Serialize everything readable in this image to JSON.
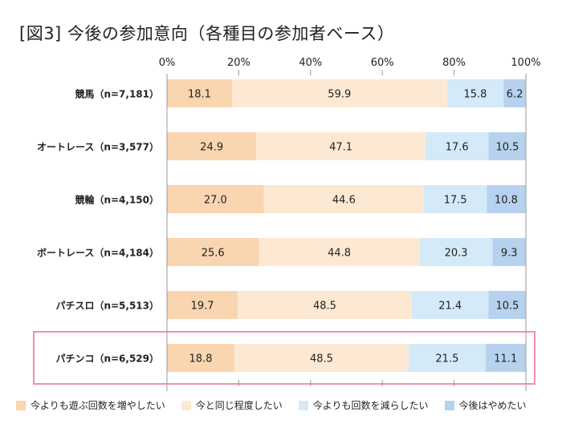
{
  "chart_data": {
    "type": "bar",
    "orientation": "horizontal",
    "stacked": true,
    "title": "[図3] 今後の参加意向（各種目の参加者ベース）",
    "xlabel": "",
    "ylabel": "",
    "xlim": [
      0,
      100
    ],
    "x_ticks": [
      "0%",
      "20%",
      "40%",
      "60%",
      "80%",
      "100%"
    ],
    "x_tick_values": [
      0,
      20,
      40,
      60,
      80,
      100
    ],
    "categories": [
      "競馬（n=7,181）",
      "オートレース（n=3,577）",
      "競輪（n=4,150）",
      "ボートレース（n=4,184）",
      "パチスロ（n=5,513）",
      "パチンコ（n=6,529）"
    ],
    "series": [
      {
        "name": "今よりも遊ぶ回数を増やしたい",
        "color": "#f9d5b0",
        "values": [
          18.1,
          24.9,
          27.0,
          25.6,
          19.7,
          18.8
        ],
        "labels": [
          "18.1",
          "24.9",
          "27.0",
          "25.6",
          "19.7",
          "18.8"
        ]
      },
      {
        "name": "今と同じ程度したい",
        "color": "#fde9d3",
        "values": [
          59.9,
          47.1,
          44.6,
          44.8,
          48.5,
          48.5
        ],
        "labels": [
          "59.9",
          "47.1",
          "44.6",
          "44.8",
          "48.5",
          "48.5"
        ]
      },
      {
        "name": "今よりも回数を減らしたい",
        "color": "#d5eaf8",
        "values": [
          15.8,
          17.6,
          17.5,
          20.3,
          21.4,
          21.5
        ],
        "labels": [
          "15.8",
          "17.6",
          "17.5",
          "20.3",
          "21.4",
          "21.5"
        ]
      },
      {
        "name": "今後はやめたい",
        "color": "#b7d2ee",
        "values": [
          6.2,
          10.5,
          10.8,
          9.3,
          10.5,
          11.1
        ],
        "labels": [
          "6.2",
          "10.5",
          "10.8",
          "9.3",
          "10.5",
          "11.1"
        ]
      }
    ],
    "highlighted_category": "パチンコ（n=6,529）",
    "highlight_color": "#ee8fbd",
    "grid": false,
    "legend_position": "bottom"
  }
}
